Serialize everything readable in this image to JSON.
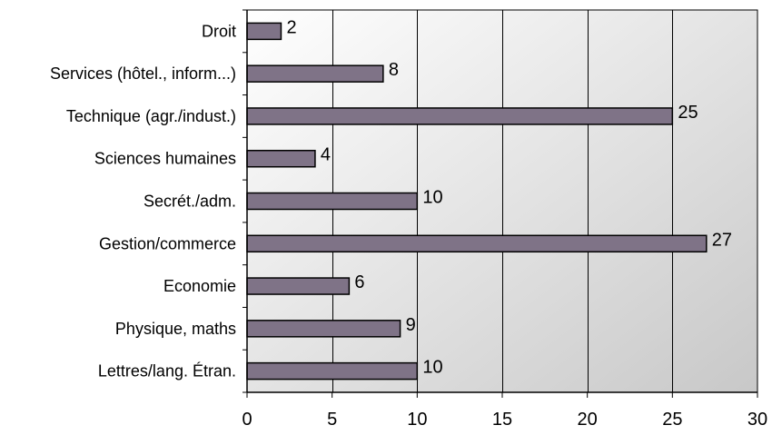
{
  "chart_data": {
    "type": "bar",
    "orientation": "horizontal",
    "categories": [
      "Droit",
      "Services (hôtel., inform...)",
      "Technique (agr./indust.)",
      "Sciences humaines",
      "Secrét./adm.",
      "Gestion/commerce",
      "Economie",
      "Physique, maths",
      "Lettres/lang. Étran."
    ],
    "values": [
      2,
      8,
      25,
      4,
      10,
      27,
      6,
      9,
      10
    ],
    "data_labels": [
      "2",
      "8",
      "25",
      "4",
      "10",
      "27",
      "6",
      "9",
      "10"
    ],
    "xlim": [
      0,
      30
    ],
    "xticks": [
      0,
      5,
      10,
      15,
      20,
      25,
      30
    ],
    "xtick_labels": [
      "0",
      "5",
      "10",
      "15",
      "20",
      "25",
      "30"
    ],
    "grid": true,
    "legend": "none",
    "title": "",
    "xlabel": "",
    "ylabel": "",
    "colors": {
      "bar_fill": "#7f7387",
      "bar_stroke": "#000000",
      "plot_bg_start": "#ffffff",
      "plot_bg_end": "#c8c8c8",
      "grid": "#000000",
      "axis": "#000000"
    }
  }
}
